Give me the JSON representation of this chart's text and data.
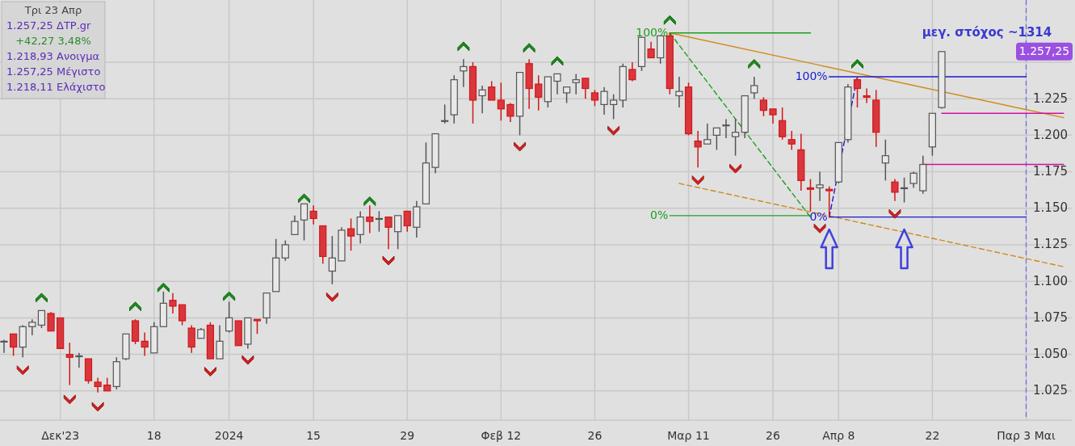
{
  "chart_data": {
    "type": "candlestick",
    "title": "μεγ. στόχος ~1314",
    "annotations": [
      "Τρι 23 Απρ",
      "1.257,25 ΔΤΡ.gr",
      "+42,27 3,48%",
      "1.218,93 Ανοιγμα",
      "1.257,25 Μέγιστο",
      "1.218,11 Ελάχιστο",
      "1.257,25"
    ],
    "categories": [
      null,
      null,
      null,
      null,
      null,
      null,
      "Δεκ'23",
      null,
      null,
      null,
      null,
      null,
      null,
      null,
      null,
      null,
      "18",
      null,
      null,
      null,
      null,
      null,
      null,
      null,
      "2024",
      null,
      null,
      null,
      null,
      null,
      null,
      null,
      null,
      "15",
      null,
      null,
      null,
      null,
      null,
      null,
      null,
      null,
      null,
      "29",
      null,
      null,
      null,
      null,
      null,
      null,
      null,
      null,
      null,
      "Φεβ 12",
      null,
      null,
      null,
      null,
      null,
      null,
      null,
      null,
      null,
      "26",
      null,
      null,
      null,
      null,
      null,
      null,
      null,
      null,
      null,
      "Μαρ 11",
      null,
      null,
      null,
      null,
      null,
      null,
      null,
      null,
      "26",
      null,
      null,
      null,
      null,
      null,
      null,
      "Απρ 8",
      null,
      null,
      null,
      null,
      null,
      null,
      null,
      null,
      null,
      "22",
      null,
      null,
      null,
      null,
      null,
      null,
      null,
      null,
      null,
      "Παρ 3 Μαι",
      null,
      null,
      null,
      null
    ],
    "ohlc": [
      [
        1059,
        1060,
        1051,
        1059
      ],
      [
        1064,
        1064,
        1049,
        1055
      ],
      [
        1055,
        1070,
        1048,
        1069
      ],
      [
        1069,
        1074,
        1063,
        1072
      ],
      [
        1070,
        1080,
        1068,
        1080
      ],
      [
        1078,
        1079,
        1066,
        1066
      ],
      [
        1075,
        1075,
        1054,
        1054
      ],
      [
        1050,
        1058,
        1029,
        1048
      ],
      [
        1049,
        1051,
        1041,
        1049
      ],
      [
        1047,
        1047,
        1030,
        1032
      ],
      [
        1031,
        1034,
        1024,
        1028
      ],
      [
        1029,
        1034,
        1025,
        1025
      ],
      [
        1028,
        1048,
        1026,
        1045
      ],
      [
        1047,
        1064,
        1046,
        1064
      ],
      [
        1073,
        1074,
        1057,
        1059
      ],
      [
        1059,
        1065,
        1049,
        1055
      ],
      [
        1051,
        1072,
        1051,
        1069
      ],
      [
        1069,
        1093,
        1069,
        1085
      ],
      [
        1087,
        1092,
        1078,
        1083
      ],
      [
        1084,
        1084,
        1070,
        1073
      ],
      [
        1068,
        1070,
        1051,
        1055
      ],
      [
        1061,
        1068,
        1061,
        1067
      ],
      [
        1070,
        1072,
        1047,
        1047
      ],
      [
        1047,
        1070,
        1047,
        1059
      ],
      [
        1066,
        1086,
        1065,
        1075
      ],
      [
        1073,
        1073,
        1056,
        1056
      ],
      [
        1057,
        1075,
        1054,
        1075
      ],
      [
        1074,
        1074,
        1064,
        1073
      ],
      [
        1075,
        1092,
        1071,
        1092
      ],
      [
        1093,
        1129,
        1093,
        1116
      ],
      [
        1116,
        1128,
        1114,
        1125
      ],
      [
        1132,
        1145,
        1132,
        1141
      ],
      [
        1142,
        1153,
        1128,
        1153
      ],
      [
        1148,
        1152,
        1139,
        1143
      ],
      [
        1138,
        1138,
        1112,
        1117
      ],
      [
        1107,
        1131,
        1098,
        1116
      ],
      [
        1114,
        1137,
        1114,
        1135
      ],
      [
        1136,
        1143,
        1121,
        1131
      ],
      [
        1132,
        1148,
        1126,
        1144
      ],
      [
        1144,
        1152,
        1133,
        1141
      ],
      [
        1143,
        1148,
        1134,
        1143
      ],
      [
        1144,
        1144,
        1122,
        1137
      ],
      [
        1134,
        1145,
        1122,
        1145
      ],
      [
        1148,
        1148,
        1134,
        1138
      ],
      [
        1137,
        1155,
        1130,
        1151
      ],
      [
        1153,
        1195,
        1153,
        1181
      ],
      [
        1178,
        1201,
        1174,
        1201
      ],
      [
        1210,
        1221,
        1208,
        1210
      ],
      [
        1214,
        1241,
        1208,
        1238
      ],
      [
        1244,
        1252,
        1233,
        1247
      ],
      [
        1247,
        1250,
        1208,
        1224
      ],
      [
        1227,
        1234,
        1215,
        1231
      ],
      [
        1233,
        1237,
        1224,
        1224
      ],
      [
        1224,
        1236,
        1210,
        1218
      ],
      [
        1221,
        1222,
        1209,
        1213
      ],
      [
        1213,
        1243,
        1200,
        1243
      ],
      [
        1249,
        1252,
        1218,
        1232
      ],
      [
        1235,
        1241,
        1217,
        1226
      ],
      [
        1223,
        1240,
        1219,
        1240
      ],
      [
        1237,
        1242,
        1228,
        1242
      ],
      [
        1229,
        1233,
        1222,
        1233
      ],
      [
        1236,
        1242,
        1228,
        1238
      ],
      [
        1239,
        1239,
        1225,
        1232
      ],
      [
        1229,
        1231,
        1220,
        1224
      ],
      [
        1221,
        1233,
        1214,
        1230
      ],
      [
        1221,
        1228,
        1211,
        1224
      ],
      [
        1224,
        1249,
        1219,
        1247
      ],
      [
        1245,
        1250,
        1237,
        1238
      ],
      [
        1247,
        1267,
        1244,
        1267
      ],
      [
        1259,
        1264,
        1253,
        1253
      ],
      [
        1253,
        1268,
        1249,
        1268
      ],
      [
        1268,
        1270,
        1228,
        1232
      ],
      [
        1227,
        1240,
        1219,
        1230
      ],
      [
        1233,
        1236,
        1200,
        1201
      ],
      [
        1196,
        1203,
        1178,
        1192
      ],
      [
        1194,
        1208,
        1194,
        1197
      ],
      [
        1200,
        1205,
        1190,
        1205
      ],
      [
        1207,
        1211,
        1198,
        1207
      ],
      [
        1199,
        1211,
        1186,
        1202
      ],
      [
        1202,
        1227,
        1198,
        1227
      ],
      [
        1229,
        1240,
        1225,
        1234
      ],
      [
        1224,
        1226,
        1213,
        1217
      ],
      [
        1218,
        1218,
        1208,
        1214
      ],
      [
        1210,
        1219,
        1197,
        1199
      ],
      [
        1197,
        1203,
        1190,
        1194
      ],
      [
        1190,
        1201,
        1162,
        1169
      ],
      [
        1164,
        1170,
        1148,
        1163
      ],
      [
        1164,
        1175,
        1155,
        1166
      ],
      [
        1163,
        1165,
        1144,
        1162
      ],
      [
        1168,
        1195,
        1167,
        1195
      ],
      [
        1197,
        1235,
        1195,
        1233
      ],
      [
        1238,
        1240,
        1219,
        1232
      ],
      [
        1227,
        1232,
        1222,
        1226
      ],
      [
        1224,
        1231,
        1192,
        1202
      ],
      [
        1181,
        1197,
        1169,
        1186
      ],
      [
        1168,
        1170,
        1155,
        1161
      ],
      [
        1164,
        1171,
        1154,
        1164
      ],
      [
        1167,
        1175,
        1164,
        1174
      ],
      [
        1162,
        1186,
        1160,
        1180
      ],
      [
        1192,
        1215,
        1186,
        1215
      ],
      [
        1218.93,
        1257.25,
        1218.11,
        1257.25
      ],
      null,
      null,
      null,
      null,
      null,
      null,
      null,
      null,
      null,
      null,
      null,
      null,
      null
    ],
    "series": [
      {
        "type": "line",
        "color": "#d08a1a",
        "values": [
          null,
          null,
          null,
          null,
          null,
          null,
          null,
          null,
          null,
          null,
          null,
          null,
          null,
          null,
          null,
          null,
          null,
          null,
          null,
          null,
          null,
          null,
          null,
          null,
          null,
          null,
          null,
          null,
          null,
          null,
          null,
          null,
          null,
          null,
          null,
          null,
          null,
          null,
          null,
          null,
          null,
          null,
          null,
          null,
          null,
          null,
          null,
          null,
          null,
          null,
          null,
          null,
          null,
          null,
          null,
          null,
          null,
          null,
          null,
          null,
          null,
          null,
          null,
          null,
          null,
          null,
          null,
          null,
          null,
          null,
          null,
          1270,
          null,
          null,
          null,
          null,
          null,
          null,
          null,
          null,
          null,
          null,
          null,
          null,
          null,
          null,
          null,
          null,
          null,
          null,
          null,
          null,
          null,
          null,
          null,
          null,
          null,
          null,
          null,
          null,
          null,
          null,
          null,
          null,
          null,
          null,
          null,
          null,
          null,
          null,
          null,
          null,
          null,
          1212
        ]
      },
      {
        "type": "line",
        "color": "#d08a1a",
        "line_style": "dashed",
        "values": [
          null,
          null,
          null,
          null,
          null,
          null,
          null,
          null,
          null,
          null,
          null,
          null,
          null,
          null,
          null,
          null,
          null,
          null,
          null,
          null,
          null,
          null,
          null,
          null,
          null,
          null,
          null,
          null,
          null,
          null,
          null,
          null,
          null,
          null,
          null,
          null,
          null,
          null,
          null,
          null,
          null,
          null,
          null,
          null,
          null,
          null,
          null,
          null,
          null,
          null,
          null,
          null,
          null,
          null,
          null,
          null,
          null,
          null,
          null,
          null,
          null,
          null,
          null,
          null,
          null,
          null,
          null,
          null,
          null,
          null,
          null,
          null,
          1167,
          null,
          null,
          null,
          null,
          null,
          null,
          null,
          null,
          null,
          null,
          null,
          null,
          null,
          null,
          null,
          null,
          null,
          null,
          null,
          null,
          null,
          null,
          null,
          null,
          null,
          null,
          null,
          null,
          null,
          null,
          null,
          null,
          null,
          null,
          null,
          null,
          null,
          null,
          null,
          null,
          1110
        ]
      },
      {
        "type": "line",
        "color": "#1e9e1e",
        "line_style": "dashed",
        "values": [
          null,
          null,
          null,
          null,
          null,
          null,
          null,
          null,
          null,
          null,
          null,
          null,
          null,
          null,
          null,
          null,
          null,
          null,
          null,
          null,
          null,
          null,
          null,
          null,
          null,
          null,
          null,
          null,
          null,
          null,
          null,
          null,
          null,
          null,
          null,
          null,
          null,
          null,
          null,
          null,
          null,
          null,
          null,
          null,
          null,
          null,
          null,
          null,
          null,
          null,
          null,
          null,
          null,
          null,
          null,
          null,
          null,
          null,
          null,
          null,
          null,
          null,
          null,
          null,
          null,
          null,
          null,
          null,
          null,
          null,
          null,
          1270,
          null,
          null,
          null,
          null,
          null,
          null,
          null,
          null,
          null,
          null,
          null,
          null,
          null,
          null,
          1144,
          null,
          null,
          null,
          null,
          null,
          null,
          null,
          null,
          null,
          null,
          null,
          null,
          null,
          null,
          null,
          null,
          null,
          null,
          null,
          null,
          null,
          null,
          null,
          null,
          null,
          null,
          null
        ]
      },
      {
        "type": "line",
        "color": "#1a1ad0",
        "line_style": "dashed",
        "values": [
          null,
          null,
          null,
          null,
          null,
          null,
          null,
          null,
          null,
          null,
          null,
          null,
          null,
          null,
          null,
          null,
          null,
          null,
          null,
          null,
          null,
          null,
          null,
          null,
          null,
          null,
          null,
          null,
          null,
          null,
          null,
          null,
          null,
          null,
          null,
          null,
          null,
          null,
          null,
          null,
          null,
          null,
          null,
          null,
          null,
          null,
          null,
          null,
          null,
          null,
          null,
          null,
          null,
          null,
          null,
          null,
          null,
          null,
          null,
          null,
          null,
          null,
          null,
          null,
          null,
          null,
          null,
          null,
          null,
          null,
          null,
          null,
          null,
          null,
          null,
          null,
          null,
          null,
          null,
          null,
          null,
          null,
          null,
          null,
          null,
          null,
          null,
          null,
          1144,
          null,
          null,
          1240,
          null,
          null,
          null,
          null,
          null,
          null,
          null,
          null,
          null,
          null,
          null,
          null,
          null,
          null,
          null,
          null,
          null,
          null,
          null,
          null,
          null,
          null
        ]
      },
      {
        "type": "line",
        "name": "100%",
        "color": "#1e9e1e",
        "values": [
          null,
          null,
          null,
          null,
          null,
          null,
          null,
          null,
          null,
          null,
          null,
          null,
          null,
          null,
          null,
          null,
          null,
          null,
          null,
          null,
          null,
          null,
          null,
          null,
          null,
          null,
          null,
          null,
          null,
          null,
          null,
          null,
          null,
          null,
          null,
          null,
          null,
          null,
          null,
          null,
          null,
          null,
          null,
          null,
          null,
          null,
          null,
          null,
          null,
          null,
          null,
          null,
          null,
          null,
          null,
          null,
          null,
          null,
          null,
          null,
          null,
          null,
          null,
          null,
          null,
          null,
          null,
          null,
          null,
          null,
          null,
          1270,
          null,
          null,
          null,
          null,
          null,
          null,
          null,
          null,
          null,
          null,
          null,
          null,
          null,
          null,
          1270,
          null,
          null,
          null,
          null,
          null,
          null,
          null,
          null,
          null,
          null,
          null,
          null,
          null,
          null,
          null,
          null,
          null,
          null,
          null,
          null,
          null,
          null,
          null,
          null,
          null,
          null,
          null
        ]
      },
      {
        "type": "line",
        "name": "0%",
        "color": "#1e9e1e",
        "values": [
          null,
          null,
          null,
          null,
          null,
          null,
          null,
          null,
          null,
          null,
          null,
          null,
          null,
          null,
          null,
          null,
          null,
          null,
          null,
          null,
          null,
          null,
          null,
          null,
          null,
          null,
          null,
          null,
          null,
          null,
          null,
          null,
          null,
          null,
          null,
          null,
          null,
          null,
          null,
          null,
          null,
          null,
          null,
          null,
          null,
          null,
          null,
          null,
          null,
          null,
          null,
          null,
          null,
          null,
          null,
          null,
          null,
          null,
          null,
          null,
          null,
          null,
          null,
          null,
          null,
          null,
          null,
          null,
          null,
          null,
          null,
          1145,
          null,
          null,
          null,
          null,
          null,
          null,
          null,
          null,
          null,
          null,
          null,
          null,
          null,
          null,
          1145,
          null,
          null,
          null,
          null,
          null,
          null,
          null,
          null,
          null,
          null,
          null,
          null,
          null,
          null,
          null,
          null,
          null,
          null,
          null,
          null,
          null,
          null,
          null,
          null,
          null,
          null,
          null
        ]
      },
      {
        "type": "line",
        "name": "100%",
        "color": "#1a1ad0",
        "values": [
          null,
          null,
          null,
          null,
          null,
          null,
          null,
          null,
          null,
          null,
          null,
          null,
          null,
          null,
          null,
          null,
          null,
          null,
          null,
          null,
          null,
          null,
          null,
          null,
          null,
          null,
          null,
          null,
          null,
          null,
          null,
          null,
          null,
          null,
          null,
          null,
          null,
          null,
          null,
          null,
          null,
          null,
          null,
          null,
          null,
          null,
          null,
          null,
          null,
          null,
          null,
          null,
          null,
          null,
          null,
          null,
          null,
          null,
          null,
          null,
          null,
          null,
          null,
          null,
          null,
          null,
          null,
          null,
          null,
          null,
          null,
          null,
          null,
          null,
          null,
          null,
          null,
          null,
          null,
          null,
          null,
          null,
          null,
          null,
          null,
          null,
          null,
          null,
          1240,
          null,
          null,
          null,
          null,
          null,
          null,
          null,
          null,
          null,
          null,
          null,
          null,
          null,
          null,
          null,
          null,
          null,
          null,
          null,
          null,
          1240,
          null,
          null,
          null,
          null
        ]
      },
      {
        "type": "line",
        "name": "0%",
        "color": "#1a1ad0",
        "values": [
          null,
          null,
          null,
          null,
          null,
          null,
          null,
          null,
          null,
          null,
          null,
          null,
          null,
          null,
          null,
          null,
          null,
          null,
          null,
          null,
          null,
          null,
          null,
          null,
          null,
          null,
          null,
          null,
          null,
          null,
          null,
          null,
          null,
          null,
          null,
          null,
          null,
          null,
          null,
          null,
          null,
          null,
          null,
          null,
          null,
          null,
          null,
          null,
          null,
          null,
          null,
          null,
          null,
          null,
          null,
          null,
          null,
          null,
          null,
          null,
          null,
          null,
          null,
          null,
          null,
          null,
          null,
          null,
          null,
          null,
          null,
          null,
          null,
          null,
          null,
          null,
          null,
          null,
          null,
          null,
          null,
          null,
          null,
          null,
          null,
          null,
          null,
          null,
          1144,
          null,
          null,
          null,
          null,
          null,
          null,
          null,
          null,
          null,
          null,
          null,
          null,
          null,
          null,
          null,
          null,
          null,
          null,
          null,
          null,
          1144,
          null,
          null,
          null,
          null
        ]
      },
      {
        "type": "line",
        "color": "#d010a0",
        "values": [
          null,
          null,
          null,
          null,
          null,
          null,
          null,
          null,
          null,
          null,
          null,
          null,
          null,
          null,
          null,
          null,
          null,
          null,
          null,
          null,
          null,
          null,
          null,
          null,
          null,
          null,
          null,
          null,
          null,
          null,
          null,
          null,
          null,
          null,
          null,
          null,
          null,
          null,
          null,
          null,
          null,
          null,
          null,
          null,
          null,
          null,
          null,
          null,
          null,
          null,
          null,
          null,
          null,
          null,
          null,
          null,
          null,
          null,
          null,
          null,
          null,
          null,
          null,
          null,
          null,
          null,
          null,
          null,
          null,
          null,
          null,
          null,
          null,
          null,
          null,
          null,
          null,
          null,
          null,
          null,
          null,
          null,
          null,
          null,
          null,
          null,
          null,
          null,
          null,
          null,
          null,
          null,
          null,
          null,
          null,
          null,
          null,
          null,
          null,
          null,
          1215,
          null,
          null,
          null,
          null,
          null,
          null,
          null,
          null,
          null,
          null,
          null,
          null,
          1215
        ]
      },
      {
        "type": "line",
        "color": "#d010a0",
        "values": [
          null,
          null,
          null,
          null,
          null,
          null,
          null,
          null,
          null,
          null,
          null,
          null,
          null,
          null,
          null,
          null,
          null,
          null,
          null,
          null,
          null,
          null,
          null,
          null,
          null,
          null,
          null,
          null,
          null,
          null,
          null,
          null,
          null,
          null,
          null,
          null,
          null,
          null,
          null,
          null,
          null,
          null,
          null,
          null,
          null,
          null,
          null,
          null,
          null,
          null,
          null,
          null,
          null,
          null,
          null,
          null,
          null,
          null,
          null,
          null,
          null,
          null,
          null,
          null,
          null,
          null,
          null,
          null,
          null,
          null,
          null,
          null,
          null,
          null,
          null,
          null,
          null,
          null,
          null,
          null,
          null,
          null,
          null,
          null,
          null,
          null,
          null,
          null,
          null,
          null,
          null,
          null,
          null,
          null,
          null,
          null,
          null,
          null,
          1180,
          null,
          null,
          null,
          null,
          null,
          null,
          null,
          null,
          null,
          null,
          null,
          null,
          null,
          null,
          1180
        ]
      },
      {
        "type": "scatter",
        "marker": "triangle",
        "color": "#1a8a1a",
        "values": [
          null,
          null,
          null,
          null,
          1088,
          null,
          null,
          null,
          null,
          null,
          null,
          null,
          null,
          null,
          1082,
          null,
          null,
          1095,
          null,
          null,
          null,
          null,
          null,
          null,
          1089,
          null,
          null,
          null,
          null,
          null,
          null,
          null,
          1156,
          null,
          null,
          null,
          null,
          null,
          null,
          1154,
          null,
          null,
          null,
          null,
          null,
          null,
          null,
          null,
          null,
          1260,
          null,
          null,
          null,
          null,
          null,
          null,
          1259,
          null,
          null,
          1250,
          null,
          null,
          null,
          null,
          null,
          null,
          null,
          null,
          null,
          null,
          null,
          1278,
          null,
          null,
          null,
          null,
          null,
          null,
          null,
          null,
          1248,
          null,
          null,
          null,
          null,
          null,
          null,
          null,
          null,
          null,
          null,
          1248,
          null,
          null,
          null,
          null,
          null,
          null,
          null,
          null,
          null,
          null,
          null,
          null,
          null,
          null,
          null,
          null,
          null,
          null,
          null,
          null,
          null,
          null
        ]
      },
      {
        "type": "scatter",
        "marker": "triangle",
        "color": "#d02020",
        "values": [
          null,
          null,
          1040,
          null,
          null,
          null,
          null,
          1020,
          null,
          null,
          1015,
          null,
          null,
          null,
          null,
          null,
          null,
          null,
          null,
          null,
          null,
          null,
          1039,
          null,
          null,
          null,
          1047,
          null,
          null,
          null,
          null,
          null,
          null,
          null,
          null,
          1090,
          null,
          null,
          null,
          null,
          null,
          1115,
          null,
          null,
          null,
          null,
          null,
          null,
          null,
          null,
          null,
          null,
          null,
          null,
          null,
          1193,
          null,
          null,
          null,
          null,
          null,
          null,
          null,
          null,
          null,
          1204,
          null,
          null,
          null,
          null,
          null,
          null,
          null,
          null,
          1170,
          null,
          null,
          null,
          1178,
          null,
          null,
          null,
          null,
          null,
          null,
          null,
          null,
          1137,
          null,
          null,
          null,
          null,
          null,
          null,
          null,
          1147,
          null,
          null,
          null,
          null,
          null,
          null,
          null,
          null,
          null,
          null,
          null,
          null,
          null,
          null,
          null,
          null,
          null,
          null
        ]
      }
    ],
    "ref_lines": [
      {
        "axis": "x",
        "value": "Παρ 3 Μαι",
        "color": "#6a6af0",
        "line_style": "dashed"
      }
    ],
    "ylim": [
      1005,
      1292
    ],
    "yticks": [
      {
        "value": 1025,
        "label": "1.025"
      },
      {
        "value": 1050,
        "label": "1.050"
      },
      {
        "value": 1075,
        "label": "1.075"
      },
      {
        "value": 1100,
        "label": "1.100"
      },
      {
        "value": 1125,
        "label": "1.125"
      },
      {
        "value": 1150,
        "label": "1.150"
      },
      {
        "value": 1175,
        "label": "1.175"
      },
      {
        "value": 1200,
        "label": "1.200"
      },
      {
        "value": 1225,
        "label": "1.225"
      },
      {
        "value": 1250,
        "label": null
      }
    ],
    "grid": true
  }
}
